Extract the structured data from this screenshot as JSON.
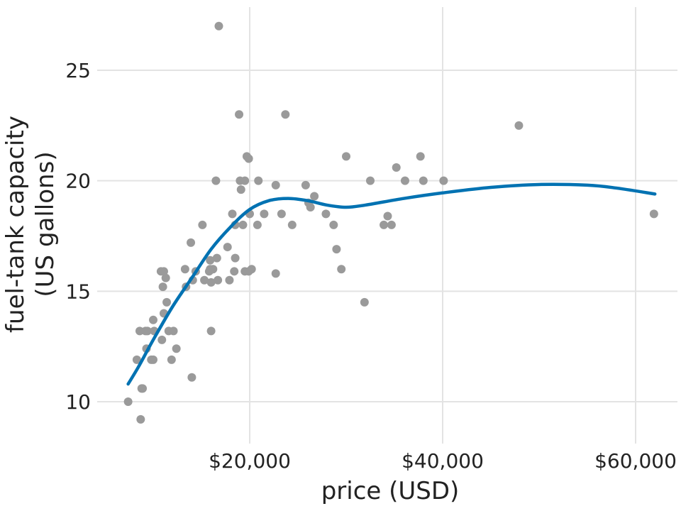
{
  "chart_data": {
    "type": "scatter",
    "title": "",
    "xlabel": "price (USD)",
    "ylabel_lines": [
      "fuel-tank capacity",
      "(US gallons)"
    ],
    "xlim": [
      7000,
      63000
    ],
    "ylim": [
      8,
      27.8
    ],
    "x_ticks": [
      {
        "value": 20000,
        "label": "$20,000"
      },
      {
        "value": 40000,
        "label": "$40,000"
      },
      {
        "value": 60000,
        "label": "$60,000"
      }
    ],
    "y_ticks": [
      {
        "value": 10,
        "label": "10"
      },
      {
        "value": 15,
        "label": "15"
      },
      {
        "value": 20,
        "label": "20"
      },
      {
        "value": 25,
        "label": "25"
      }
    ],
    "grid": true,
    "colors": {
      "points": "#9a9a9a",
      "smooth": "#0072b2",
      "grid": "#e3e3e3"
    },
    "series": [
      {
        "kind": "points",
        "points": [
          [
            7400,
            10.0
          ],
          [
            8300,
            11.9
          ],
          [
            8600,
            13.2
          ],
          [
            8700,
            9.2
          ],
          [
            8800,
            10.6
          ],
          [
            8900,
            10.6
          ],
          [
            9200,
            13.2
          ],
          [
            9300,
            12.4
          ],
          [
            9400,
            13.2
          ],
          [
            9800,
            11.9
          ],
          [
            10000,
            11.9
          ],
          [
            10000,
            13.7
          ],
          [
            10100,
            13.2
          ],
          [
            10800,
            15.9
          ],
          [
            10900,
            12.8
          ],
          [
            11000,
            15.2
          ],
          [
            11100,
            15.9
          ],
          [
            11100,
            14.0
          ],
          [
            11300,
            15.6
          ],
          [
            11400,
            14.5
          ],
          [
            11600,
            13.2
          ],
          [
            11900,
            11.9
          ],
          [
            12100,
            13.2
          ],
          [
            12400,
            12.4
          ],
          [
            13300,
            16.0
          ],
          [
            13400,
            15.2
          ],
          [
            13900,
            17.2
          ],
          [
            14000,
            11.1
          ],
          [
            14100,
            15.5
          ],
          [
            14400,
            15.9
          ],
          [
            15100,
            18.0
          ],
          [
            15300,
            15.5
          ],
          [
            15800,
            15.9
          ],
          [
            15900,
            16.4
          ],
          [
            15900,
            16.0
          ],
          [
            16000,
            13.2
          ],
          [
            16000,
            15.4
          ],
          [
            16200,
            16.0
          ],
          [
            16500,
            20.0
          ],
          [
            16600,
            16.5
          ],
          [
            16700,
            15.5
          ],
          [
            16800,
            27.0
          ],
          [
            17700,
            17.0
          ],
          [
            17900,
            15.5
          ],
          [
            18200,
            18.5
          ],
          [
            18400,
            15.9
          ],
          [
            18500,
            16.5
          ],
          [
            18500,
            18.0
          ],
          [
            18900,
            23.0
          ],
          [
            19000,
            20.0
          ],
          [
            19100,
            19.6
          ],
          [
            19300,
            18.0
          ],
          [
            19500,
            20.0
          ],
          [
            19500,
            15.9
          ],
          [
            19700,
            21.1
          ],
          [
            19900,
            15.9
          ],
          [
            19900,
            21.0
          ],
          [
            20000,
            18.5
          ],
          [
            20200,
            16.0
          ],
          [
            20800,
            18.0
          ],
          [
            20900,
            20.0
          ],
          [
            21500,
            18.5
          ],
          [
            22700,
            19.8
          ],
          [
            22700,
            15.8
          ],
          [
            23300,
            18.5
          ],
          [
            23700,
            23.0
          ],
          [
            24400,
            18.0
          ],
          [
            25800,
            19.8
          ],
          [
            26100,
            19.0
          ],
          [
            26300,
            18.8
          ],
          [
            26700,
            19.3
          ],
          [
            27900,
            18.5
          ],
          [
            28700,
            18.0
          ],
          [
            29000,
            16.9
          ],
          [
            29500,
            16.0
          ],
          [
            30000,
            21.1
          ],
          [
            31900,
            14.5
          ],
          [
            32500,
            20.0
          ],
          [
            33900,
            18.0
          ],
          [
            34300,
            18.4
          ],
          [
            34700,
            18.0
          ],
          [
            35200,
            20.6
          ],
          [
            36100,
            20.0
          ],
          [
            37700,
            21.1
          ],
          [
            38000,
            20.0
          ],
          [
            40100,
            20.0
          ],
          [
            47900,
            22.5
          ],
          [
            61900,
            18.5
          ]
        ]
      },
      {
        "kind": "smooth",
        "points": [
          [
            7400,
            10.8
          ],
          [
            8500,
            11.6
          ],
          [
            10000,
            12.8
          ],
          [
            12000,
            14.3
          ],
          [
            14000,
            15.6
          ],
          [
            16000,
            16.9
          ],
          [
            18000,
            17.9
          ],
          [
            20000,
            18.7
          ],
          [
            22000,
            19.1
          ],
          [
            24000,
            19.2
          ],
          [
            26000,
            19.1
          ],
          [
            28000,
            18.9
          ],
          [
            30000,
            18.8
          ],
          [
            32000,
            18.9
          ],
          [
            36000,
            19.2
          ],
          [
            40000,
            19.45
          ],
          [
            45000,
            19.7
          ],
          [
            50000,
            19.83
          ],
          [
            55000,
            19.8
          ],
          [
            58000,
            19.67
          ],
          [
            62000,
            19.4
          ]
        ]
      }
    ]
  }
}
